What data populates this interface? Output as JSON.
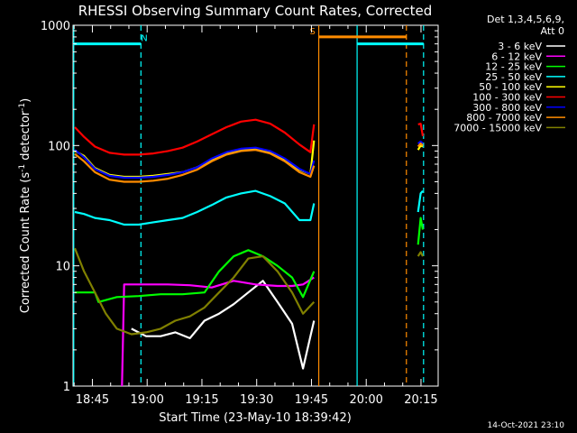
{
  "chart_data": {
    "type": "line",
    "title": "RHESSI Observing Summary Count Rates, Corrected",
    "xlabel": "Start Time (23-May-10 18:39:42)",
    "ylabel": "Corrected Count Rate (s⁻¹ detector⁻¹)",
    "ylabel_parts": {
      "prefix": "Corrected Count Rate (s",
      "exp1": "-1",
      "mid": " detector",
      "exp2": "-1",
      "suffix": ")"
    },
    "footer_date": "14-Oct-2021 23:10",
    "y_scale": "log",
    "ylim": [
      1,
      1000
    ],
    "xlim_minutes": [
      0,
      100
    ],
    "x_ticks": [
      {
        "t": 5.3,
        "label": "18:45"
      },
      {
        "t": 20.3,
        "label": "19:00"
      },
      {
        "t": 35.3,
        "label": "19:15"
      },
      {
        "t": 50.3,
        "label": "19:30"
      },
      {
        "t": 65.3,
        "label": "19:45"
      },
      {
        "t": 80.3,
        "label": "20:00"
      },
      {
        "t": 95.3,
        "label": "20:15"
      }
    ],
    "y_ticks": [
      {
        "v": 1,
        "label": "1"
      },
      {
        "v": 10,
        "label": "10"
      },
      {
        "v": 100,
        "label": "100"
      },
      {
        "v": 1000,
        "label": "1000"
      }
    ],
    "legend_header": [
      "Det 1,3,4,5,6,9,",
      "Att 0"
    ],
    "flags": [
      {
        "label": "N",
        "color": "#00ffff",
        "start": 0,
        "end": 18.6,
        "level": 700,
        "label_pos": 19.5
      },
      {
        "label": "S",
        "color": "#ff8c00",
        "start": 67.3,
        "end": 91.3,
        "level": 800,
        "label_pos": 65.6
      },
      {
        "label": "",
        "color": "#00ffff",
        "start": 77.8,
        "end": 96.0,
        "level": 700,
        "label_pos": null
      }
    ],
    "vlines": [
      {
        "t": 0.2,
        "color": "#00ffff",
        "dash": false
      },
      {
        "t": 18.6,
        "color": "#00ffff",
        "dash": true
      },
      {
        "t": 67.3,
        "color": "#ff8c00",
        "dash": false
      },
      {
        "t": 77.8,
        "color": "#00ffff",
        "dash": false
      },
      {
        "t": 91.3,
        "color": "#ff8c00",
        "dash": true
      },
      {
        "t": 96.0,
        "color": "#00ffff",
        "dash": true
      }
    ],
    "series": [
      {
        "name": "3 - 6 keV",
        "color": "#ffffff",
        "segments": [
          {
            "t": [
              16,
              20,
              24,
              28,
              32,
              36,
              40,
              44,
              48,
              52,
              56,
              60,
              63,
              66
            ],
            "values": [
              3,
              2.6,
              2.6,
              2.8,
              2.5,
              3.5,
              4,
              4.8,
              6,
              7.5,
              5,
              3.3,
              1.4,
              3.5
            ]
          }
        ]
      },
      {
        "name": "6 - 12 keV",
        "color": "#ff00ff",
        "segments": [
          {
            "t": [
              13.4,
              14,
              20,
              26,
              32,
              38,
              44,
              50,
              56,
              60,
              63,
              66
            ],
            "values": [
              1,
              7,
              7,
              7,
              6.9,
              6.6,
              7.5,
              7,
              6.8,
              6.8,
              7,
              8
            ]
          }
        ]
      },
      {
        "name": "12 - 25 keV",
        "color": "#00ff00",
        "segments": [
          {
            "t": [
              0.5,
              6,
              7,
              12,
              18,
              24,
              30,
              36,
              40,
              44,
              48,
              52,
              56,
              60,
              63,
              66
            ],
            "values": [
              6,
              6,
              5,
              5.5,
              5.6,
              5.8,
              5.8,
              6,
              9,
              12,
              13.5,
              12,
              10,
              8,
              5.5,
              9
            ]
          },
          {
            "t": [
              94.5,
              95.2,
              95.8
            ],
            "values": [
              15,
              25,
              20
            ]
          }
        ]
      },
      {
        "name": "25 - 50 keV",
        "color": "#00ffff",
        "segments": [
          {
            "t": [
              0.5,
              3,
              6,
              10,
              14,
              18,
              22,
              26,
              30,
              34,
              38,
              42,
              46,
              50,
              54,
              58,
              62,
              65,
              66
            ],
            "values": [
              28,
              27,
              25,
              24,
              22,
              22,
              23,
              24,
              25,
              28,
              32,
              37,
              40,
              42,
              38,
              33,
              24,
              24,
              33
            ]
          },
          {
            "t": [
              94.5,
              95.2,
              95.8
            ],
            "values": [
              28,
              40,
              42
            ]
          }
        ]
      },
      {
        "name": "50 - 100 keV",
        "color": "#ffff00",
        "segments": [
          {
            "t": [
              0.5,
              3,
              6,
              10,
              14,
              18,
              22,
              26,
              30,
              34,
              38,
              42,
              46,
              50,
              54,
              58,
              62,
              65,
              66
            ],
            "values": [
              90,
              82,
              65,
              57,
              55,
              55,
              56,
              58,
              60,
              66,
              76,
              86,
              92,
              94,
              88,
              76,
              63,
              58,
              110
            ]
          },
          {
            "t": [
              94.5,
              95.2,
              95.8
            ],
            "values": [
              92,
              100,
              98
            ]
          }
        ]
      },
      {
        "name": "100 - 300 keV",
        "color": "#ff0000",
        "segments": [
          {
            "t": [
              0.5,
              3,
              6,
              10,
              14,
              18,
              22,
              26,
              30,
              34,
              38,
              42,
              46,
              50,
              54,
              58,
              62,
              65,
              66
            ],
            "values": [
              142,
              118,
              98,
              87,
              84,
              84,
              86,
              90,
              96,
              108,
              124,
              142,
              158,
              164,
              152,
              128,
              102,
              88,
              150
            ]
          },
          {
            "t": [
              94.5,
              95.2,
              95.8
            ],
            "values": [
              150,
              152,
              120
            ]
          }
        ]
      },
      {
        "name": "300 - 800 keV",
        "color": "#0000ff",
        "segments": [
          {
            "t": [
              0.5,
              3,
              6,
              10,
              14,
              18,
              22,
              26,
              30,
              34,
              38,
              42,
              46,
              50,
              54,
              58,
              62,
              65,
              66
            ],
            "values": [
              92,
              80,
              64,
              56,
              54,
              54,
              55,
              57,
              60,
              66,
              78,
              88,
              94,
              96,
              90,
              78,
              64,
              58,
              75
            ]
          },
          {
            "t": [
              94.5,
              95.2,
              95.8
            ],
            "values": [
              104,
              108,
              104
            ]
          }
        ]
      },
      {
        "name": "800 - 7000 keV",
        "color": "#ff8c00",
        "segments": [
          {
            "t": [
              0.5,
              3,
              6,
              10,
              14,
              18,
              22,
              26,
              30,
              34,
              38,
              42,
              46,
              50,
              54,
              58,
              62,
              65,
              66
            ],
            "values": [
              85,
              74,
              60,
              52,
              50,
              50,
              51,
              53,
              57,
              63,
              74,
              84,
              90,
              92,
              86,
              74,
              60,
              55,
              68
            ]
          },
          {
            "t": [
              94.5,
              95.2,
              95.8
            ],
            "values": [
              98,
              104,
              100
            ]
          }
        ]
      },
      {
        "name": "7000 - 15000 keV",
        "color": "#808000",
        "segments": [
          {
            "t": [
              0.5,
              3,
              6,
              9,
              12,
              16,
              20,
              24,
              28,
              32,
              36,
              40,
              44,
              48,
              52,
              56,
              60,
              63,
              66
            ],
            "values": [
              14,
              9,
              6,
              4,
              3,
              2.7,
              2.8,
              3,
              3.5,
              3.8,
              4.5,
              6,
              8,
              11.5,
              12,
              9,
              6,
              4,
              5
            ]
          },
          {
            "t": [
              94.5,
              95.2,
              95.8
            ],
            "values": [
              12,
              13,
              12
            ]
          }
        ]
      }
    ]
  }
}
